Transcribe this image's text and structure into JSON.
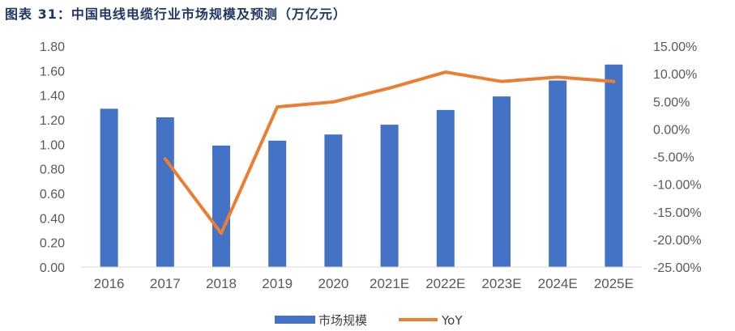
{
  "title": "图表 31：中国电线电缆行业市场规模及预测（万亿元）",
  "chart_data": {
    "type": "bar",
    "categories": [
      "2016",
      "2017",
      "2018",
      "2019",
      "2020",
      "2021E",
      "2022E",
      "2023E",
      "2024E",
      "2025E"
    ],
    "series": [
      {
        "name": "市场规模",
        "type": "bar",
        "axis": "left",
        "color": "#4472c4",
        "values": [
          1.29,
          1.22,
          0.99,
          1.03,
          1.08,
          1.16,
          1.28,
          1.39,
          1.52,
          1.65
        ]
      },
      {
        "name": "YoY",
        "type": "line",
        "axis": "right",
        "color": "#ed7d31",
        "values": [
          null,
          -5.4,
          -18.9,
          4.0,
          4.9,
          7.4,
          10.3,
          8.6,
          9.4,
          8.6
        ]
      }
    ],
    "y_left": {
      "min": 0,
      "max": 1.8,
      "step": 0.2,
      "tick_labels": [
        "0.00",
        "0.20",
        "0.40",
        "0.60",
        "0.80",
        "1.00",
        "1.20",
        "1.40",
        "1.60",
        "1.80"
      ]
    },
    "y_right": {
      "min": -25,
      "max": 15,
      "step": 5,
      "unit": "%",
      "tick_labels": [
        "-25.00%",
        "-20.00%",
        "-15.00%",
        "-10.00%",
        "-5.00%",
        "0.00%",
        "5.00%",
        "10.00%",
        "15.00%"
      ]
    },
    "grid": false,
    "legend_position": "bottom",
    "legend": [
      {
        "label": "市场规模",
        "color": "#4472c4",
        "kind": "bar"
      },
      {
        "label": "YoY",
        "color": "#ed7d31",
        "kind": "line"
      }
    ]
  }
}
